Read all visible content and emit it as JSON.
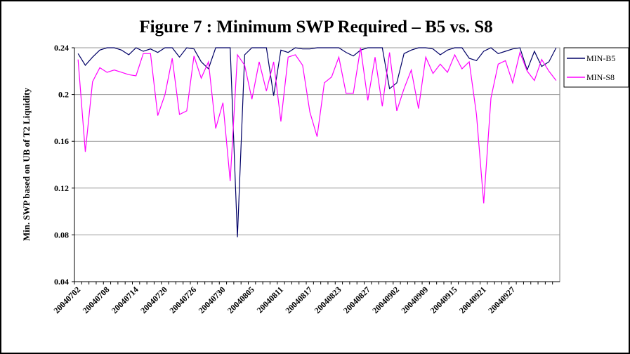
{
  "chart_data": {
    "type": "line",
    "title": "Figure 7 : Minimum SWP Required – B5 vs. S8",
    "y_label": "Min. SWP based on UB of T2 Liquidity",
    "categories": [
      "20040702",
      null,
      null,
      null,
      "20040708",
      null,
      null,
      null,
      "20040714",
      null,
      null,
      null,
      "20040720",
      null,
      null,
      null,
      "20040726",
      null,
      null,
      null,
      "20040730",
      null,
      null,
      null,
      "20040805",
      null,
      null,
      null,
      "20040811",
      null,
      null,
      null,
      "20040817",
      null,
      null,
      null,
      "20040823",
      null,
      null,
      null,
      "20040827",
      null,
      null,
      null,
      "20040902",
      null,
      null,
      null,
      "20040909",
      null,
      null,
      null,
      "20040915",
      null,
      null,
      null,
      "20040921",
      null,
      null,
      null,
      "20040927",
      null,
      null,
      null,
      null,
      null,
      null
    ],
    "series": [
      {
        "name": "MIN-B5",
        "color": "#000066",
        "values": [
          0.235,
          0.225,
          0.232,
          0.238,
          0.24,
          0.24,
          0.238,
          0.234,
          0.24,
          0.237,
          0.239,
          0.236,
          0.24,
          0.24,
          0.232,
          0.24,
          0.239,
          0.228,
          0.222,
          0.24,
          0.24,
          0.24,
          0.078,
          0.234,
          0.24,
          0.24,
          0.24,
          0.199,
          0.238,
          0.236,
          0.24,
          0.239,
          0.239,
          0.24,
          0.24,
          0.24,
          0.24,
          0.236,
          0.233,
          0.238,
          0.24,
          0.24,
          0.24,
          0.205,
          0.21,
          0.235,
          0.238,
          0.24,
          0.24,
          0.239,
          0.234,
          0.238,
          0.24,
          0.24,
          0.231,
          0.229,
          0.237,
          0.24,
          0.235,
          0.237,
          0.239,
          0.24,
          0.221,
          0.237,
          0.224,
          0.228,
          0.24
        ]
      },
      {
        "name": "MIN-S8",
        "color": "#ff00ff",
        "values": [
          0.23,
          0.151,
          0.211,
          0.223,
          0.219,
          0.221,
          0.219,
          0.217,
          0.216,
          0.235,
          0.235,
          0.182,
          0.2,
          0.231,
          0.183,
          0.186,
          0.233,
          0.214,
          0.228,
          0.171,
          0.193,
          0.126,
          0.234,
          0.225,
          0.196,
          0.228,
          0.203,
          0.228,
          0.177,
          0.232,
          0.234,
          0.225,
          0.185,
          0.164,
          0.21,
          0.215,
          0.232,
          0.201,
          0.201,
          0.24,
          0.195,
          0.232,
          0.19,
          0.236,
          0.186,
          0.205,
          0.221,
          0.188,
          0.232,
          0.218,
          0.226,
          0.219,
          0.234,
          0.222,
          0.228,
          0.183,
          0.107,
          0.197,
          0.226,
          0.229,
          0.21,
          0.236,
          0.22,
          0.212,
          0.23,
          0.22,
          0.212
        ]
      }
    ],
    "ylim": [
      0.04,
      0.24
    ],
    "yticks": [
      0.04,
      0.08,
      0.12,
      0.16,
      0.2,
      0.24
    ],
    "grid": true,
    "legend": "right"
  }
}
